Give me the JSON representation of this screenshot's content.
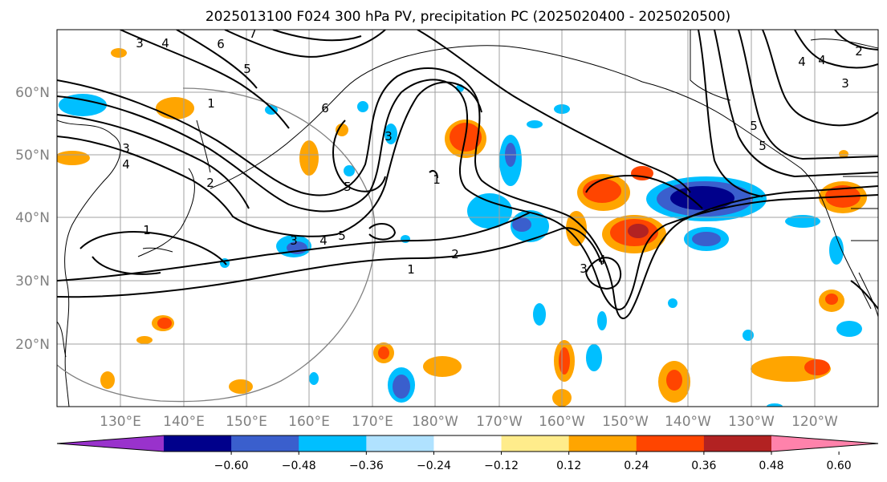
{
  "title": "2025013100 F024 300 hPa PV, precipitation PC (2025020400 - 2025020500)",
  "map": {
    "lat_labels": [
      "60°N",
      "50°N",
      "40°N",
      "30°N",
      "20°N"
    ],
    "lon_labels": [
      "130°E",
      "140°E",
      "150°E",
      "160°E",
      "170°E",
      "180°W",
      "170°W",
      "160°W",
      "150°W",
      "140°W",
      "130°W",
      "120°W"
    ],
    "pv_contour_labels": [
      "3",
      "4",
      "6",
      "7",
      "5",
      "1",
      "3",
      "4",
      "2",
      "6",
      "5",
      "1",
      "3",
      "4",
      "5",
      "2",
      "1",
      "3",
      "4",
      "1",
      "3",
      "4",
      "5",
      "2",
      "5",
      "4",
      "3"
    ]
  },
  "colorbar": {
    "colors": [
      "#9932cc",
      "#00008b",
      "#3a5fcd",
      "#00bfff",
      "#b0e2ff",
      "#ffffff",
      "#ffec8b",
      "#ffa500",
      "#ff4500",
      "#b22222",
      "#ff82ab"
    ],
    "tick_labels": [
      "−0.60",
      "−0.48",
      "−0.36",
      "−0.24",
      "−0.12",
      "0.12",
      "0.24",
      "0.36",
      "0.48",
      "0.60"
    ]
  },
  "colors": {
    "grid": "#a0a0a0",
    "coast": "#000000",
    "contour": "#000000",
    "circle": "#808080"
  }
}
